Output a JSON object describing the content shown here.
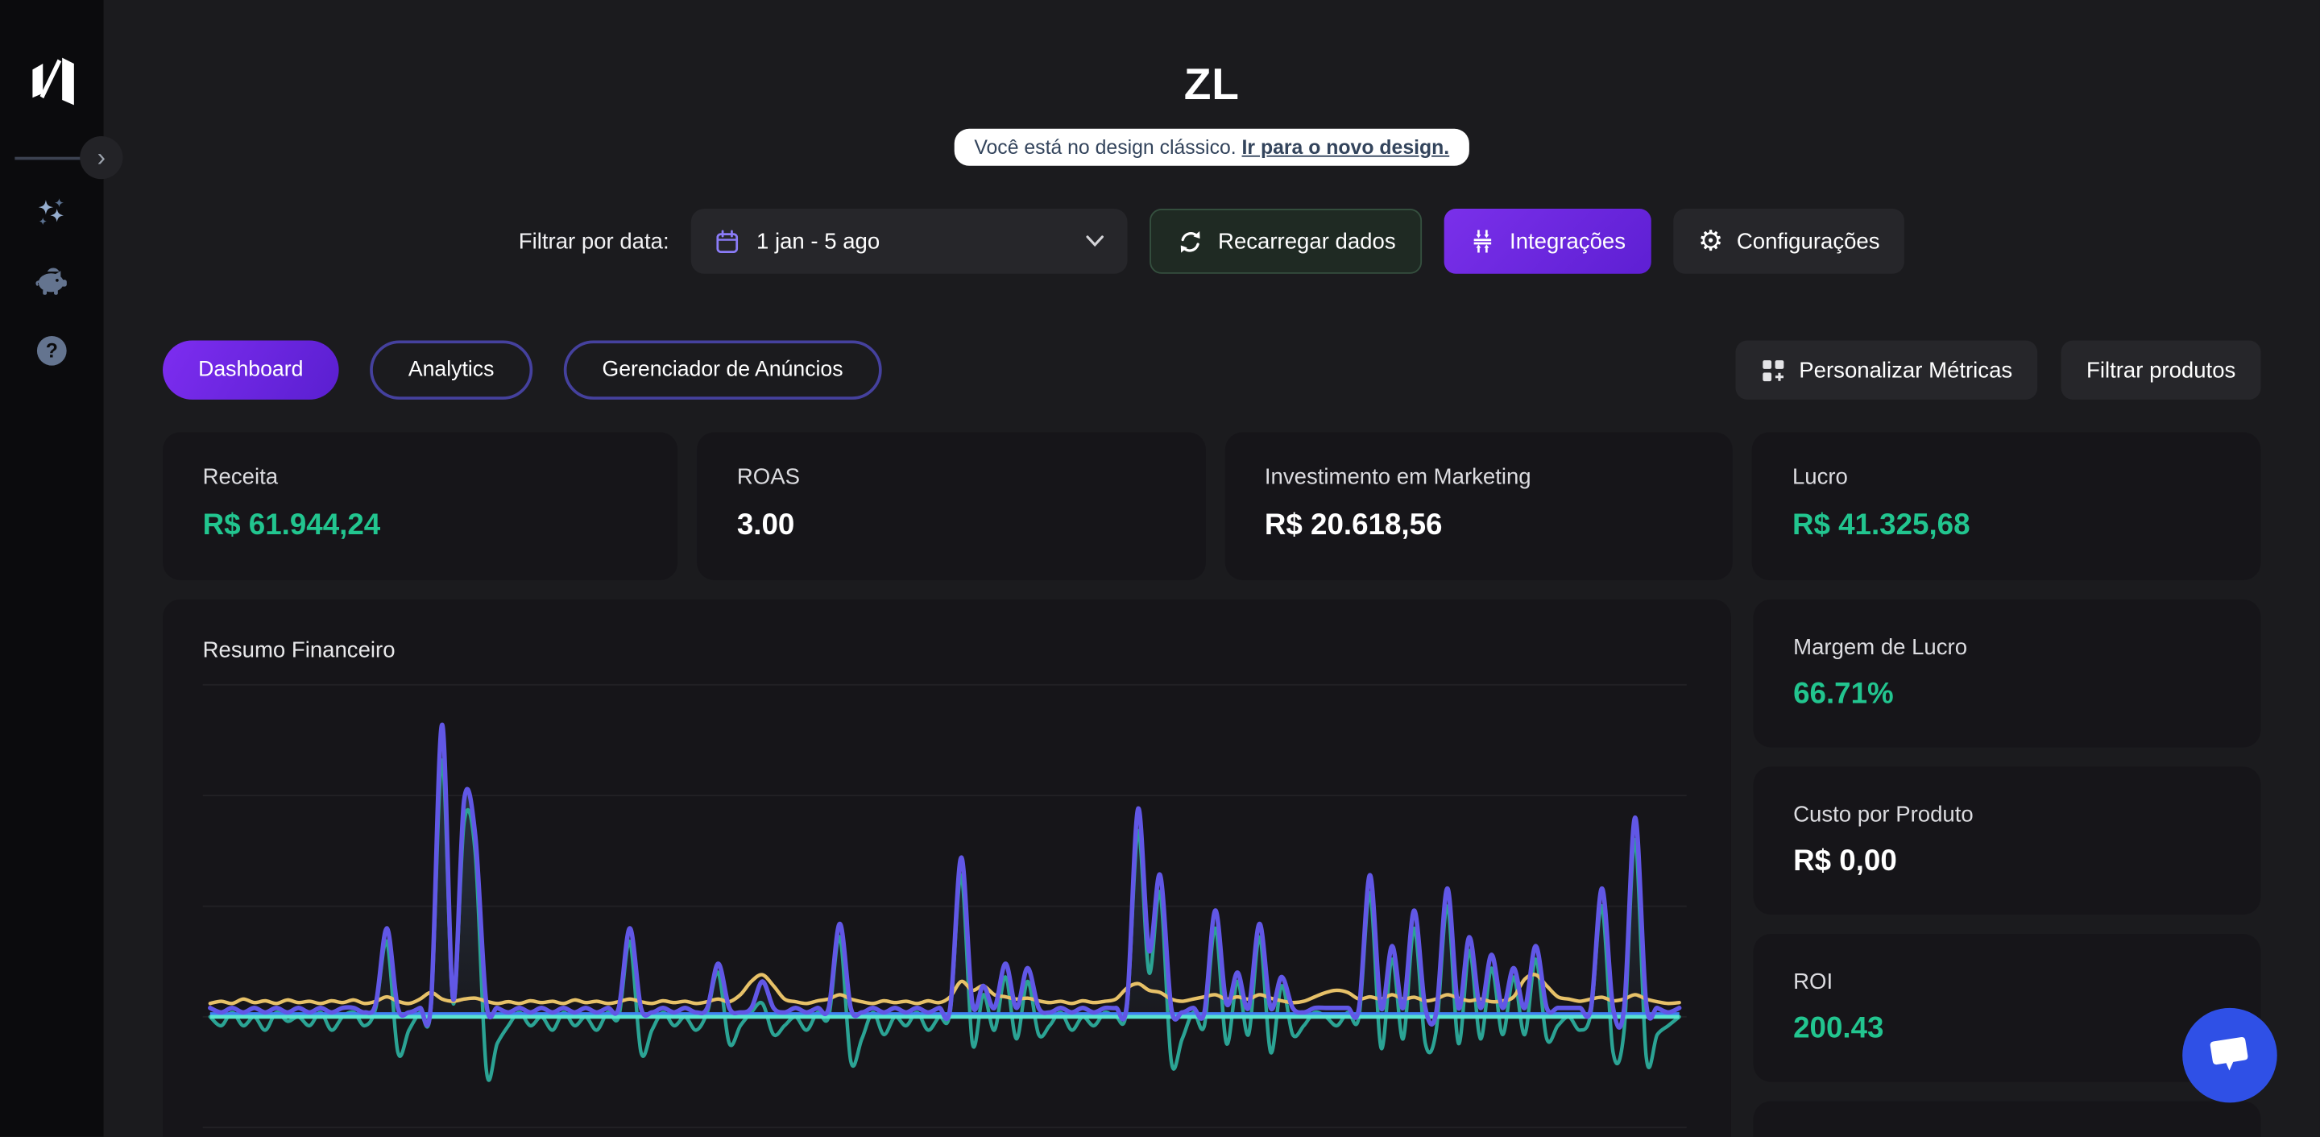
{
  "page": {
    "title": "ZL"
  },
  "banner": {
    "text": "Você está no design clássico. ",
    "link": "Ir para o novo design."
  },
  "sidebar": {
    "icons": [
      {
        "name": "sparkles-icon"
      },
      {
        "name": "piggy-bank-icon"
      },
      {
        "name": "help-icon"
      }
    ],
    "expand_chevron": "›"
  },
  "filter_bar": {
    "label": "Filtrar por data:",
    "date_range": "1 jan - 5 ago",
    "reload_label": "Recarregar dados",
    "integrations_label": "Integrações",
    "settings_label": "Configurações",
    "gear_glyph": "⚙"
  },
  "tabs": [
    {
      "label": "Dashboard",
      "active": true
    },
    {
      "label": "Analytics",
      "active": false
    },
    {
      "label": "Gerenciador de Anúncios",
      "active": false
    }
  ],
  "top_actions": {
    "customize_label": "Personalizar Métricas",
    "filter_products_label": "Filtrar produtos"
  },
  "metrics": [
    {
      "label": "Receita",
      "value": "R$ 61.944,24",
      "color": "green"
    },
    {
      "label": "ROAS",
      "value": "3.00",
      "color": "white"
    },
    {
      "label": "Investimento em Marketing",
      "value": "R$ 20.618,56",
      "color": "white"
    },
    {
      "label": "Lucro",
      "value": "R$ 41.325,68",
      "color": "green"
    }
  ],
  "side_metrics": [
    {
      "label": "Margem de Lucro",
      "value": "66.71%",
      "color": "green"
    },
    {
      "label": "Custo por Produto",
      "value": "R$ 0,00",
      "color": "white"
    },
    {
      "label": "ROI",
      "value": "200.43",
      "color": "green"
    }
  ],
  "colors": {
    "accent_purple": "#6d28d9",
    "green": "#22c58f",
    "chat_blue": "#2f50e6",
    "card_bg": "#161519",
    "page_bg": "#1b1b1e",
    "sidebar_bg": "#0b0b0d"
  },
  "chart_data": {
    "type": "line",
    "title": "Resumo Financeiro",
    "note": "No axis tick labels visible in screenshot; values are relative grid units (one horizontal gridline = 25 units), baseline = 0, estimated from pixels",
    "gridline_values": [
      75,
      50,
      25,
      0,
      -25
    ],
    "baseline_value": 0,
    "baseline_line_color": "#59e3cf",
    "grid_on": true,
    "legend_visible": false,
    "series": [
      {
        "name": "series-purple",
        "color": "#6157e6",
        "fill": "gradient",
        "values": [
          2,
          1,
          2,
          1,
          2,
          1,
          2,
          1,
          2,
          1,
          2,
          1,
          2,
          2,
          1,
          3,
          20,
          2,
          1,
          2,
          3,
          66,
          4,
          49,
          41,
          3,
          2,
          1,
          2,
          1,
          2,
          1,
          2,
          1,
          2,
          1,
          2,
          2,
          20,
          2,
          1,
          2,
          1,
          2,
          1,
          2,
          12,
          2,
          1,
          2,
          8,
          2,
          1,
          2,
          1,
          2,
          2,
          21,
          2,
          1,
          2,
          1,
          2,
          1,
          2,
          1,
          2,
          2,
          36,
          3,
          7,
          2,
          12,
          2,
          11,
          2,
          1,
          2,
          1,
          2,
          1,
          2,
          2,
          3,
          47,
          15,
          32,
          2,
          1,
          2,
          1,
          24,
          3,
          10,
          2,
          21,
          2,
          9,
          2,
          1,
          2,
          2,
          2,
          2,
          2,
          32,
          2,
          16,
          2,
          24,
          2,
          1,
          29,
          2,
          18,
          2,
          14,
          2,
          11,
          2,
          16,
          2,
          2,
          2,
          2,
          2,
          29,
          2,
          2,
          45,
          3,
          2,
          1,
          2
        ]
      },
      {
        "name": "series-teal",
        "color": "#2ba394",
        "fill": "none",
        "values": [
          0,
          -2,
          1,
          -2,
          0,
          -3,
          1,
          -1,
          0,
          -2,
          1,
          -3,
          0,
          1,
          -2,
          2,
          17,
          -8,
          -3,
          1,
          2,
          58,
          3,
          44,
          37,
          -12,
          -6,
          -2,
          1,
          -2,
          0,
          -3,
          1,
          -2,
          0,
          -3,
          1,
          0,
          17,
          -8,
          -3,
          1,
          -2,
          0,
          -3,
          1,
          10,
          -6,
          -2,
          1,
          3,
          -4,
          -2,
          0,
          -3,
          1,
          0,
          18,
          -10,
          -5,
          1,
          -4,
          0,
          -2,
          1,
          -3,
          0,
          1,
          32,
          -6,
          5,
          -3,
          9,
          -5,
          8,
          -4,
          -2,
          1,
          -3,
          0,
          -2,
          1,
          0,
          2,
          42,
          10,
          28,
          -10,
          -5,
          1,
          -2,
          20,
          -6,
          8,
          -4,
          18,
          -8,
          7,
          -4,
          -2,
          1,
          0,
          -2,
          1,
          0,
          28,
          -7,
          13,
          -5,
          20,
          -6,
          -3,
          25,
          -6,
          15,
          -5,
          11,
          -4,
          9,
          -4,
          13,
          -5,
          -2,
          0,
          -3,
          1,
          25,
          -8,
          -3,
          40,
          -9,
          -4,
          -2,
          0
        ]
      },
      {
        "name": "series-yellow",
        "color": "#e7c168",
        "fill": "none",
        "values": [
          3,
          3.5,
          3,
          4,
          3.2,
          3.6,
          3,
          3.8,
          3.2,
          3.5,
          3,
          3.6,
          3.2,
          3.8,
          3,
          3.5,
          4.5,
          3.5,
          3,
          4,
          5.5,
          4,
          3.5,
          4,
          4.2,
          3.5,
          3,
          3.4,
          3,
          3.6,
          3.2,
          3.5,
          3,
          3.8,
          3.2,
          3.5,
          3,
          3.4,
          4,
          3.4,
          3,
          3.6,
          3.2,
          3.5,
          3,
          3.4,
          4,
          3.4,
          5,
          8,
          9.5,
          7,
          4,
          3.4,
          3,
          3.6,
          4,
          5,
          4,
          3.4,
          3,
          3.6,
          3.2,
          3.5,
          3,
          3.6,
          3.2,
          4.5,
          8,
          6,
          7,
          5,
          4.5,
          4,
          4.2,
          3.6,
          3.2,
          3.5,
          3,
          3.6,
          3.2,
          3.5,
          4,
          6.5,
          7.5,
          6,
          5.5,
          4,
          3.5,
          4,
          4.5,
          5,
          4,
          4.5,
          4,
          5,
          4.2,
          3.6,
          3.2,
          3.5,
          4.5,
          5.5,
          6,
          5.5,
          4,
          4.5,
          4,
          5,
          4,
          4.4,
          3.6,
          4,
          5,
          4.2,
          3.6,
          4,
          3.4,
          3.6,
          4.5,
          8.5,
          9.5,
          7,
          4.5,
          4,
          3.5,
          4,
          4.4,
          3.6,
          4,
          5,
          4,
          3.4,
          3,
          3.2
        ]
      },
      {
        "name": "series-blue-flat",
        "color": "#3f7ff0",
        "fill": "none",
        "flat_value": 0.7
      }
    ]
  }
}
